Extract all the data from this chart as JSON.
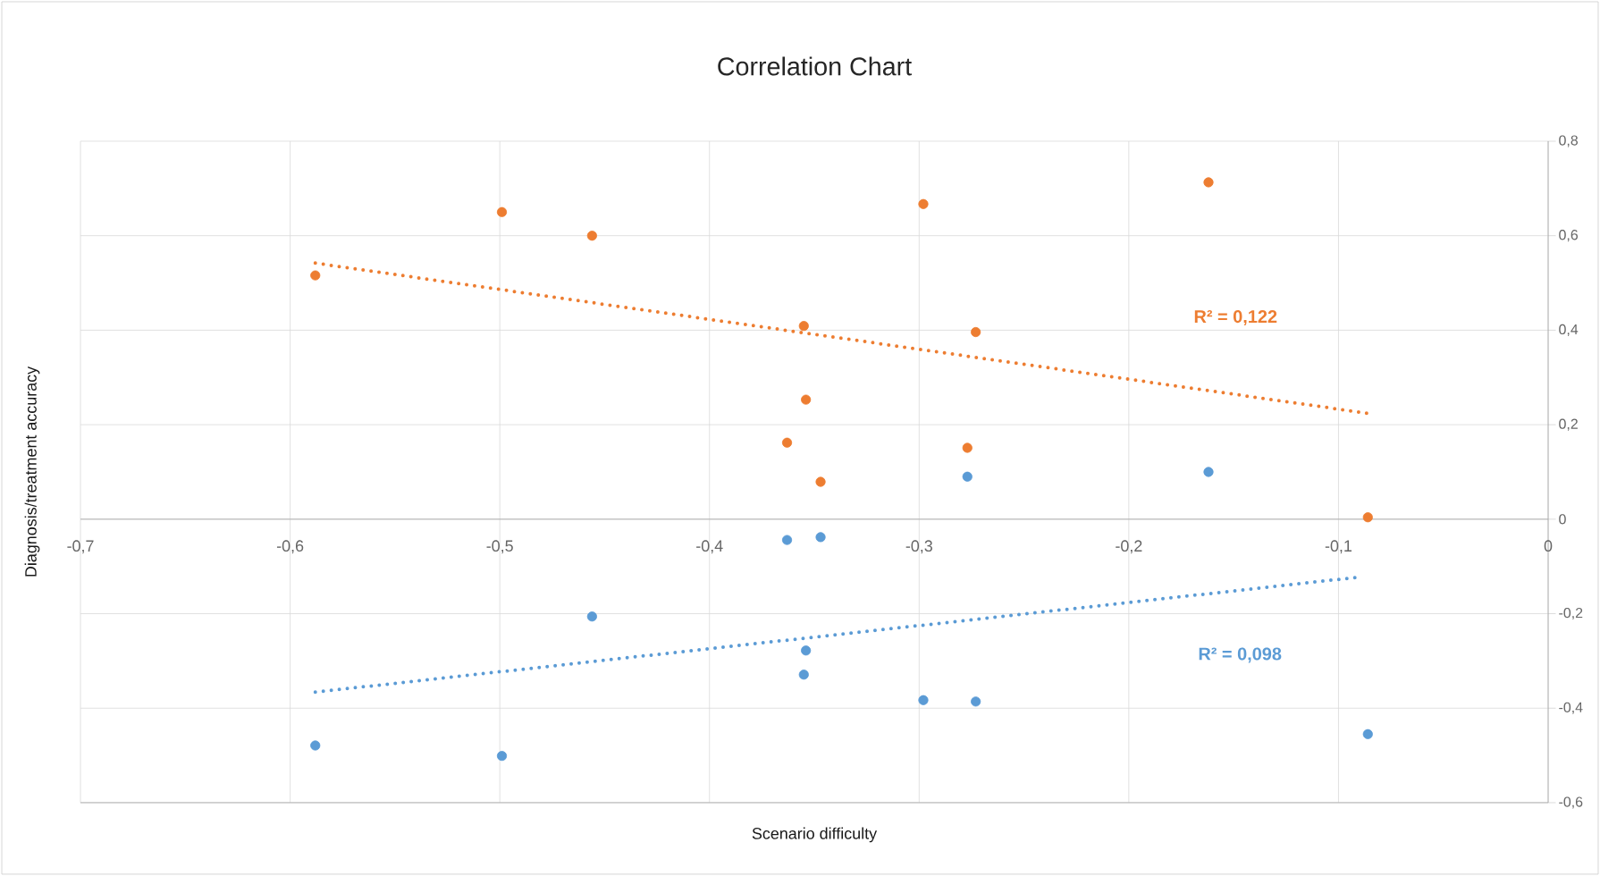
{
  "chart_data": {
    "type": "scatter",
    "title": "Correlation Chart",
    "xlabel": "Scenario difficulty",
    "ylabel": "Diagnosis/treatment accuracy",
    "xlim": [
      -0.7,
      0
    ],
    "ylim": [
      -0.6,
      0.8
    ],
    "xticks": [
      {
        "value": -0.7,
        "label": "-0,7"
      },
      {
        "value": -0.6,
        "label": "-0,6"
      },
      {
        "value": -0.5,
        "label": "-0,5"
      },
      {
        "value": -0.4,
        "label": "-0,4"
      },
      {
        "value": -0.3,
        "label": "-0,3"
      },
      {
        "value": -0.2,
        "label": "-0,2"
      },
      {
        "value": -0.1,
        "label": "-0,1"
      },
      0
    ],
    "yticks": [
      {
        "value": -0.6,
        "label": "-0,6"
      },
      {
        "value": -0.4,
        "label": "-0,4"
      },
      {
        "value": -0.2,
        "label": "-0,2"
      },
      0,
      {
        "value": 0.2,
        "label": "0,2"
      },
      {
        "value": 0.4,
        "label": "0,4"
      },
      {
        "value": 0.6,
        "label": "0,6"
      },
      {
        "value": 0.8,
        "label": "0,8"
      }
    ],
    "grid": true,
    "series": [
      {
        "color": "#ed7d31",
        "marker": "circle",
        "x": [
          -0.588,
          -0.499,
          -0.456,
          -0.355,
          -0.354,
          -0.363,
          -0.347,
          -0.298,
          -0.273,
          -0.277,
          -0.162,
          -0.086
        ],
        "values": [
          0.516,
          0.65,
          0.6,
          0.409,
          0.253,
          0.162,
          0.079,
          0.667,
          0.396,
          0.151,
          0.713,
          0.004
        ]
      },
      {
        "color": "#5b9bd5",
        "marker": "circle",
        "x": [
          -0.588,
          -0.499,
          -0.456,
          -0.363,
          -0.347,
          -0.354,
          -0.355,
          -0.298,
          -0.273,
          -0.277,
          -0.162,
          -0.086
        ],
        "values": [
          -0.479,
          -0.501,
          -0.206,
          -0.044,
          -0.038,
          -0.278,
          -0.329,
          -0.383,
          -0.386,
          0.09,
          0.1,
          -0.455
        ]
      },
      {
        "type": "line",
        "color": "#ed7d31",
        "marker": "none",
        "line_style": "dotted",
        "x": [
          -0.588,
          -0.086
        ],
        "values": [
          0.542,
          0.224
        ]
      },
      {
        "type": "line",
        "color": "#5b9bd5",
        "marker": "none",
        "line_style": "dotted",
        "x": [
          -0.588,
          -0.091
        ],
        "values": [
          -0.366,
          -0.123
        ]
      }
    ],
    "annotations": [
      "R² = 0,122",
      "R² = 0,098"
    ]
  }
}
